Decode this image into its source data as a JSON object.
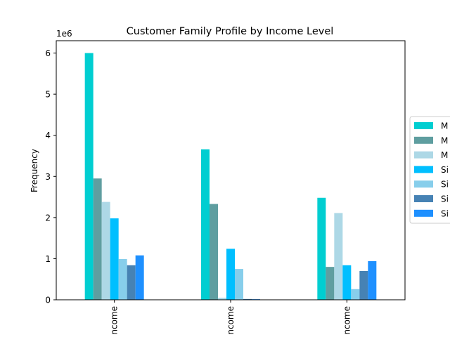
{
  "chart_data": {
    "type": "bar",
    "title": "Customer Family Profile by Income Level",
    "xlabel": "",
    "ylabel": "Frequency",
    "y_scale_label": "1e6",
    "ylim": [
      0,
      6300000
    ],
    "yticks": [
      0,
      1,
      2,
      3,
      4,
      5,
      6
    ],
    "ytick_multiplier": 1000000,
    "grid": false,
    "legend_position": "right (clipped)",
    "categories": [
      "ncome",
      "ncome",
      "ncome"
    ],
    "series": [
      {
        "name": "M",
        "color": "#00CED1",
        "values": [
          6000000,
          3660000,
          2480000
        ]
      },
      {
        "name": "M",
        "color": "#5F9EA0",
        "values": [
          2950000,
          2330000,
          800000
        ]
      },
      {
        "name": "M",
        "color": "#ADD8E6",
        "values": [
          2380000,
          50000,
          2110000
        ]
      },
      {
        "name": "Si",
        "color": "#00BFFF",
        "values": [
          1980000,
          1240000,
          840000
        ]
      },
      {
        "name": "Si",
        "color": "#87CEEB",
        "values": [
          990000,
          750000,
          260000
        ]
      },
      {
        "name": "Si",
        "color": "#4682B4",
        "values": [
          840000,
          20000,
          700000
        ]
      },
      {
        "name": "Si",
        "color": "#1E90FF",
        "values": [
          1080000,
          15000,
          940000
        ]
      }
    ]
  }
}
